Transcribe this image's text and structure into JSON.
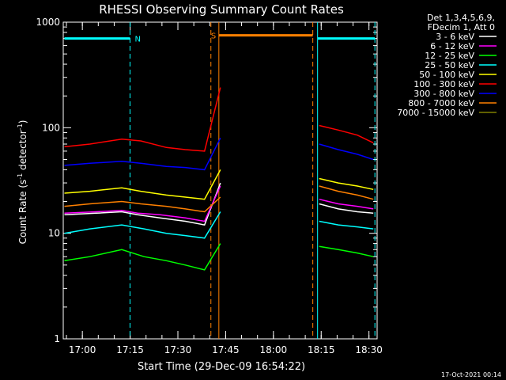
{
  "chart_data": {
    "type": "line",
    "title": "RHESSI Observing Summary Count Rates",
    "xlabel": "Start Time (29-Dec-09 16:54:22)",
    "ylabel_main": "Count Rate (s",
    "ylabel_sup1": "-1",
    "ylabel_mid": " detector",
    "ylabel_sup2": "-1",
    "ylabel_end": ")",
    "y_scale": "log",
    "ylim": [
      1,
      1000
    ],
    "xlim_minutes": [
      -0.3667,
      98.2
    ],
    "x_ticks": [
      {
        "label": "17:00",
        "min": 5.6333
      },
      {
        "label": "17:15",
        "min": 20.6333
      },
      {
        "label": "17:30",
        "min": 35.6333
      },
      {
        "label": "17:45",
        "min": 50.6333
      },
      {
        "label": "18:00",
        "min": 65.6333
      },
      {
        "label": "18:15",
        "min": 80.6333
      },
      {
        "label": "18:30",
        "min": 95.6333
      }
    ],
    "y_ticks": [
      {
        "label": "1",
        "value": 1
      },
      {
        "label": "10",
        "value": 10
      },
      {
        "label": "100",
        "value": 100
      },
      {
        "label": "1000",
        "value": 1000
      }
    ],
    "legend_header": [
      "Det 1,3,4,5,6,9,",
      "FDecim 1, Att 0"
    ],
    "series": [
      {
        "name": "3 - 6 keV",
        "color": "#ffffff",
        "points": [
          [
            0,
            15
          ],
          [
            10,
            15.5
          ],
          [
            18,
            16
          ],
          [
            23,
            15
          ],
          [
            30,
            14
          ],
          [
            38,
            13
          ],
          [
            44,
            12
          ],
          [
            49,
            30
          ],
          [
            78,
            null
          ],
          [
            80,
            19
          ],
          [
            86,
            17
          ],
          [
            92,
            16
          ],
          [
            97,
            15.5
          ]
        ]
      },
      {
        "name": "6 - 12 keV",
        "color": "#ff00ff",
        "points": [
          [
            0,
            15.5
          ],
          [
            10,
            16
          ],
          [
            18,
            16.5
          ],
          [
            23,
            15.5
          ],
          [
            30,
            15
          ],
          [
            38,
            14
          ],
          [
            44,
            13
          ],
          [
            49,
            28
          ],
          [
            78,
            null
          ],
          [
            80,
            21
          ],
          [
            86,
            19
          ],
          [
            92,
            18
          ],
          [
            97,
            17
          ]
        ]
      },
      {
        "name": "12 - 25 keV",
        "color": "#00ff00",
        "points": [
          [
            0,
            5.5
          ],
          [
            8,
            6
          ],
          [
            18,
            7
          ],
          [
            25,
            6
          ],
          [
            32,
            5.5
          ],
          [
            38,
            5
          ],
          [
            44,
            4.5
          ],
          [
            49,
            8
          ],
          [
            78,
            null
          ],
          [
            80,
            7.5
          ],
          [
            86,
            7
          ],
          [
            92,
            6.5
          ],
          [
            97,
            6
          ]
        ]
      },
      {
        "name": "25 - 50 keV",
        "color": "#00ffff",
        "points": [
          [
            0,
            10
          ],
          [
            8,
            11
          ],
          [
            18,
            12
          ],
          [
            25,
            11
          ],
          [
            32,
            10
          ],
          [
            38,
            9.5
          ],
          [
            44,
            9
          ],
          [
            49,
            16
          ],
          [
            78,
            null
          ],
          [
            80,
            13
          ],
          [
            86,
            12
          ],
          [
            92,
            11.5
          ],
          [
            97,
            11
          ]
        ]
      },
      {
        "name": "50 - 100 keV",
        "color": "#ffff00",
        "points": [
          [
            0,
            24
          ],
          [
            8,
            25
          ],
          [
            18,
            27
          ],
          [
            24,
            25
          ],
          [
            32,
            23
          ],
          [
            38,
            22
          ],
          [
            44,
            21
          ],
          [
            49,
            40
          ],
          [
            78,
            null
          ],
          [
            80,
            33
          ],
          [
            86,
            30
          ],
          [
            92,
            28
          ],
          [
            97,
            26
          ]
        ]
      },
      {
        "name": "100 - 300 keV",
        "color": "#ff0000",
        "points": [
          [
            0,
            66
          ],
          [
            8,
            70
          ],
          [
            18,
            78
          ],
          [
            24,
            75
          ],
          [
            32,
            65
          ],
          [
            38,
            62
          ],
          [
            44,
            60
          ],
          [
            49,
            240
          ],
          [
            78,
            null
          ],
          [
            80,
            105
          ],
          [
            86,
            95
          ],
          [
            92,
            85
          ],
          [
            97,
            72
          ]
        ]
      },
      {
        "name": "300 - 800 keV",
        "color": "#0000ff",
        "points": [
          [
            0,
            44
          ],
          [
            8,
            46
          ],
          [
            18,
            48
          ],
          [
            24,
            46
          ],
          [
            32,
            43
          ],
          [
            38,
            42
          ],
          [
            44,
            40
          ],
          [
            49,
            80
          ],
          [
            78,
            null
          ],
          [
            80,
            70
          ],
          [
            86,
            62
          ],
          [
            92,
            56
          ],
          [
            97,
            50
          ]
        ]
      },
      {
        "name": "800 - 7000 keV",
        "color": "#ff8000",
        "points": [
          [
            0,
            18
          ],
          [
            8,
            19
          ],
          [
            18,
            20
          ],
          [
            24,
            19
          ],
          [
            32,
            18
          ],
          [
            38,
            17
          ],
          [
            44,
            16
          ],
          [
            49,
            22
          ],
          [
            78,
            null
          ],
          [
            80,
            28
          ],
          [
            86,
            25
          ],
          [
            92,
            23
          ],
          [
            97,
            21
          ]
        ]
      },
      {
        "name": "7000 - 15000 keV",
        "color": "#808000",
        "points": [
          [
            0,
            null
          ]
        ]
      }
    ],
    "intervals": [
      {
        "label": "N",
        "color": "#00ffff",
        "value": 700,
        "start": 0,
        "end": 20.6
      },
      {
        "label": "",
        "color": "#00ffff",
        "value": 700,
        "start": 79.5,
        "end": 97.5
      },
      {
        "label": "S",
        "color": "#ff8000",
        "value": 750,
        "start": 48.5,
        "end": 78
      }
    ],
    "markers": [
      {
        "min": 20.6,
        "color": "#00ffff",
        "style": "dashed"
      },
      {
        "min": 79.5,
        "color": "#00ffff",
        "style": "solid"
      },
      {
        "min": 97.5,
        "color": "#00ffff",
        "style": "dashed"
      },
      {
        "min": 48.5,
        "color": "#ff8000",
        "style": "solid"
      },
      {
        "min": 78,
        "color": "#ff8000",
        "style": "dashed"
      },
      {
        "min": 46,
        "color": "#ff8000",
        "style": "dashed"
      }
    ],
    "grid": false,
    "legend_position": "top-right"
  },
  "footer_date": "17-Oct-2021 00:14"
}
